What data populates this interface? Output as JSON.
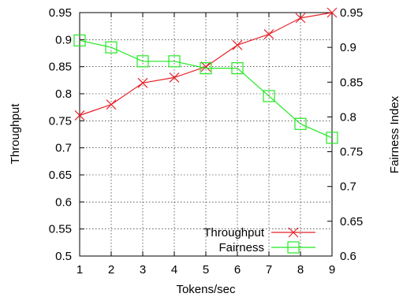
{
  "chart_data": {
    "type": "line",
    "xlabel": "Tokens/sec",
    "ylabel": "Throughput",
    "y2label": "Fairness Index",
    "xlim": [
      1,
      9
    ],
    "ylim": [
      0.5,
      0.95
    ],
    "y2lim": [
      0.6,
      0.95
    ],
    "grid": true,
    "legend_position": "bottom-right",
    "x_ticks": [
      "1",
      "2",
      "3",
      "4",
      "5",
      "6",
      "7",
      "8",
      "9"
    ],
    "y_ticks": [
      "0.5",
      "0.55",
      "0.6",
      "0.65",
      "0.7",
      "0.75",
      "0.8",
      "0.85",
      "0.9",
      "0.95"
    ],
    "y2_ticks": [
      "0.6",
      "0.65",
      "0.7",
      "0.75",
      "0.8",
      "0.85",
      "0.9",
      "0.95"
    ],
    "x": [
      1,
      2,
      3,
      4,
      5,
      6,
      7,
      8,
      9
    ],
    "series": [
      {
        "name": "Throughput",
        "axis": "left",
        "marker": "cross",
        "color": "#e8222a",
        "values": [
          0.76,
          0.78,
          0.82,
          0.83,
          0.85,
          0.89,
          0.91,
          0.94,
          0.95
        ]
      },
      {
        "name": "Fairness",
        "axis": "right",
        "marker": "open-square",
        "color": "#22e822",
        "values": [
          0.91,
          0.9,
          0.88,
          0.88,
          0.87,
          0.87,
          0.83,
          0.79,
          0.77
        ]
      }
    ]
  }
}
